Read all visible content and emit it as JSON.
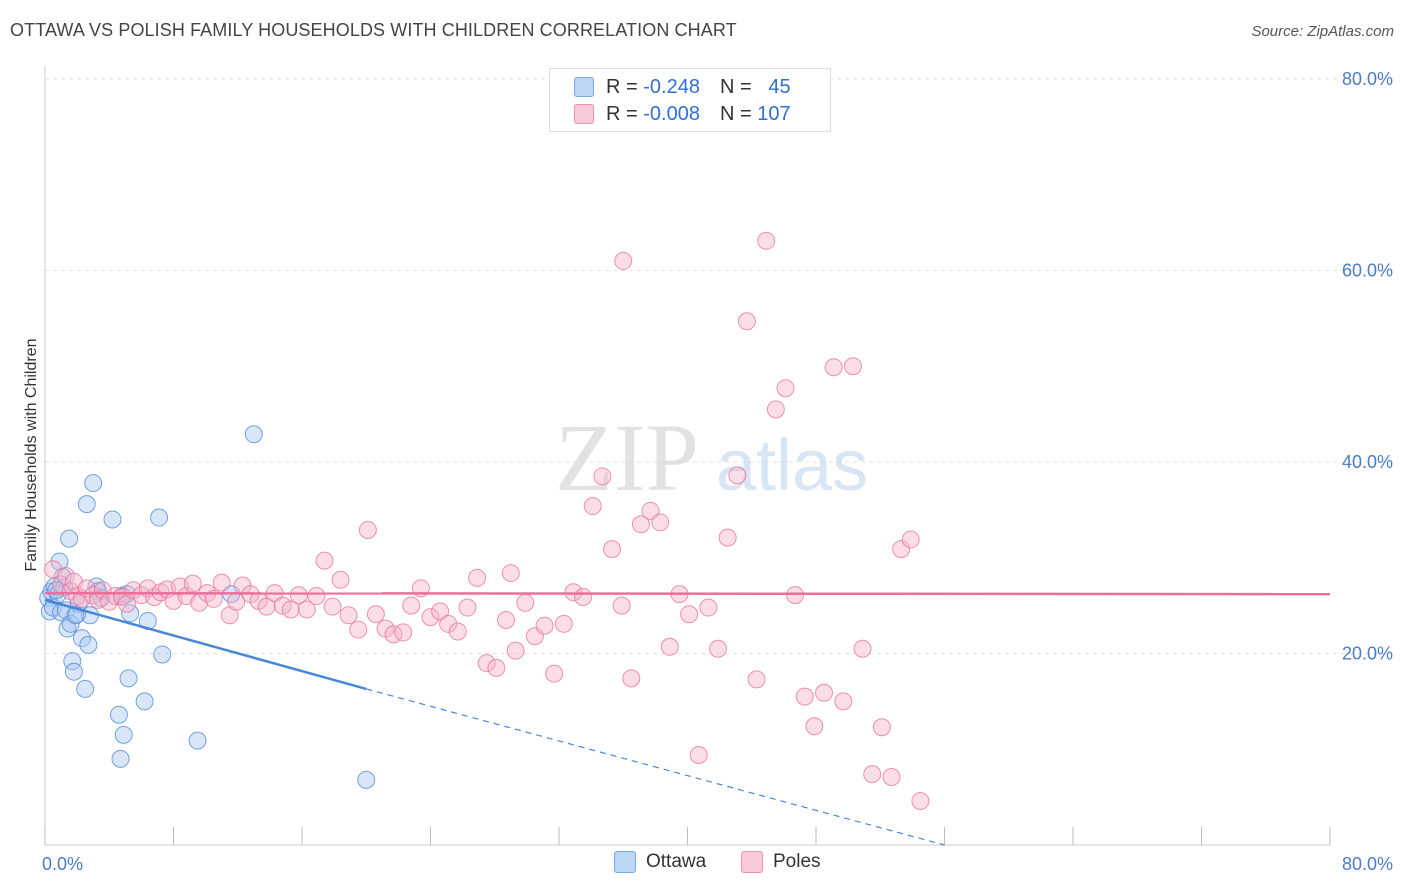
{
  "header": {
    "title": "OTTAWA VS POLISH FAMILY HOUSEHOLDS WITH CHILDREN CORRELATION CHART",
    "source": "Source: ZipAtlas.com"
  },
  "legend": {
    "rows": [
      {
        "r_label": "R =",
        "r_value": "-0.248",
        "n_label": "N =",
        "n_value": "45",
        "color": "#a9c8f0"
      },
      {
        "r_label": "R =",
        "r_value": "-0.008",
        "n_label": "N =",
        "n_value": "107",
        "color": "#f5b3c9"
      }
    ],
    "series": [
      "Ottawa",
      "Poles"
    ]
  },
  "watermark": {
    "zip": "ZIP",
    "atlas": "atlas"
  },
  "chart_data": {
    "type": "scatter",
    "title": "OTTAWA VS POLISH FAMILY HOUSEHOLDS WITH CHILDREN CORRELATION CHART",
    "xlabel": "",
    "ylabel": "Family Households with Children",
    "xlim": [
      0,
      80
    ],
    "ylim": [
      0,
      80
    ],
    "x_tick_labels": [
      "0.0%",
      "80.0%"
    ],
    "y_tick_labels": [
      "20.0%",
      "40.0%",
      "60.0%",
      "80.0%"
    ],
    "y_ticks": [
      20,
      40,
      60,
      80
    ],
    "grid": true,
    "legend_position": "top-center",
    "series": [
      {
        "name": "Ottawa",
        "color": "#4a86d8",
        "fill": "#a9c8f0",
        "trend": {
          "x": [
            0,
            20
          ],
          "y": [
            25.6,
            16.3
          ],
          "dashed_to": [
            56,
            0
          ]
        },
        "points": [
          [
            0.2,
            25.8
          ],
          [
            0.3,
            24.4
          ],
          [
            0.4,
            26.5
          ],
          [
            0.5,
            24.8
          ],
          [
            0.6,
            27.0
          ],
          [
            0.8,
            26.2
          ],
          [
            0.9,
            29.6
          ],
          [
            1.0,
            24.3
          ],
          [
            1.1,
            28.0
          ],
          [
            1.2,
            26.9
          ],
          [
            1.3,
            24.5
          ],
          [
            1.4,
            22.6
          ],
          [
            1.5,
            32.0
          ],
          [
            1.6,
            23.1
          ],
          [
            1.7,
            19.2
          ],
          [
            1.8,
            18.1
          ],
          [
            2.0,
            24.1
          ],
          [
            2.1,
            25.2
          ],
          [
            2.3,
            21.6
          ],
          [
            2.5,
            16.3
          ],
          [
            2.6,
            35.6
          ],
          [
            2.7,
            20.9
          ],
          [
            2.8,
            24.0
          ],
          [
            3.0,
            37.8
          ],
          [
            3.2,
            27.0
          ],
          [
            3.3,
            26.5
          ],
          [
            3.5,
            25.8
          ],
          [
            4.2,
            34.0
          ],
          [
            4.6,
            13.6
          ],
          [
            4.8,
            26.0
          ],
          [
            4.9,
            11.5
          ],
          [
            5.1,
            26.2
          ],
          [
            5.2,
            17.4
          ],
          [
            5.3,
            24.2
          ],
          [
            6.2,
            15.0
          ],
          [
            6.4,
            23.4
          ],
          [
            7.1,
            34.2
          ],
          [
            7.3,
            19.9
          ],
          [
            9.5,
            10.9
          ],
          [
            11.6,
            26.2
          ],
          [
            13.0,
            42.9
          ],
          [
            20.0,
            6.8
          ],
          [
            4.7,
            9.0
          ],
          [
            0.7,
            26.6
          ],
          [
            1.9,
            24.0
          ]
        ]
      },
      {
        "name": "Poles",
        "color": "#e8709a",
        "fill": "#f5b3c9",
        "trend": {
          "x": [
            0,
            80
          ],
          "y": [
            26.3,
            26.2
          ]
        },
        "points": [
          [
            0.5,
            28.8
          ],
          [
            1.0,
            27.2
          ],
          [
            1.3,
            28.1
          ],
          [
            1.6,
            26.5
          ],
          [
            1.8,
            27.5
          ],
          [
            2.0,
            26.0
          ],
          [
            2.3,
            25.7
          ],
          [
            2.6,
            26.8
          ],
          [
            3.0,
            26.1
          ],
          [
            3.3,
            25.6
          ],
          [
            3.6,
            26.6
          ],
          [
            4.0,
            25.4
          ],
          [
            4.4,
            26.0
          ],
          [
            4.8,
            25.9
          ],
          [
            5.1,
            25.2
          ],
          [
            5.5,
            26.6
          ],
          [
            6.0,
            26.1
          ],
          [
            6.4,
            26.8
          ],
          [
            6.8,
            25.9
          ],
          [
            7.2,
            26.4
          ],
          [
            7.6,
            26.7
          ],
          [
            8.0,
            25.5
          ],
          [
            8.4,
            27.0
          ],
          [
            8.8,
            26.0
          ],
          [
            9.2,
            27.3
          ],
          [
            9.6,
            25.3
          ],
          [
            10.1,
            26.3
          ],
          [
            10.5,
            25.7
          ],
          [
            11.0,
            27.4
          ],
          [
            11.5,
            24.0
          ],
          [
            11.9,
            25.4
          ],
          [
            12.3,
            27.1
          ],
          [
            12.8,
            26.2
          ],
          [
            13.3,
            25.5
          ],
          [
            13.8,
            24.9
          ],
          [
            14.3,
            26.3
          ],
          [
            14.8,
            25.0
          ],
          [
            15.3,
            24.6
          ],
          [
            15.8,
            26.1
          ],
          [
            16.3,
            24.6
          ],
          [
            16.9,
            26.0
          ],
          [
            17.4,
            29.7
          ],
          [
            17.9,
            24.9
          ],
          [
            18.4,
            27.7
          ],
          [
            18.9,
            24.0
          ],
          [
            19.5,
            22.5
          ],
          [
            20.1,
            32.9
          ],
          [
            20.6,
            24.1
          ],
          [
            21.2,
            22.6
          ],
          [
            21.7,
            22.0
          ],
          [
            22.3,
            22.2
          ],
          [
            22.8,
            25.0
          ],
          [
            23.4,
            26.8
          ],
          [
            24.0,
            23.8
          ],
          [
            24.6,
            24.4
          ],
          [
            25.1,
            23.1
          ],
          [
            25.7,
            22.3
          ],
          [
            26.3,
            24.8
          ],
          [
            26.9,
            27.9
          ],
          [
            27.5,
            19.0
          ],
          [
            28.1,
            18.5
          ],
          [
            28.7,
            23.5
          ],
          [
            29.3,
            20.3
          ],
          [
            29.9,
            25.3
          ],
          [
            30.5,
            21.8
          ],
          [
            31.1,
            22.9
          ],
          [
            31.7,
            17.9
          ],
          [
            32.3,
            23.1
          ],
          [
            32.9,
            26.4
          ],
          [
            33.5,
            25.9
          ],
          [
            34.1,
            35.4
          ],
          [
            34.7,
            38.5
          ],
          [
            35.3,
            30.9
          ],
          [
            35.9,
            25.0
          ],
          [
            36.5,
            17.4
          ],
          [
            37.1,
            33.5
          ],
          [
            37.7,
            34.9
          ],
          [
            38.3,
            33.7
          ],
          [
            38.9,
            20.7
          ],
          [
            39.5,
            26.2
          ],
          [
            40.1,
            24.1
          ],
          [
            40.7,
            9.4
          ],
          [
            41.3,
            24.8
          ],
          [
            41.9,
            20.5
          ],
          [
            42.5,
            32.1
          ],
          [
            43.1,
            38.6
          ],
          [
            43.7,
            54.7
          ],
          [
            44.3,
            17.3
          ],
          [
            44.9,
            63.1
          ],
          [
            45.5,
            45.5
          ],
          [
            46.1,
            47.7
          ],
          [
            46.7,
            26.1
          ],
          [
            47.3,
            15.5
          ],
          [
            47.9,
            12.4
          ],
          [
            48.5,
            15.9
          ],
          [
            49.1,
            49.9
          ],
          [
            49.7,
            15.0
          ],
          [
            50.3,
            50.0
          ],
          [
            50.9,
            20.5
          ],
          [
            51.5,
            7.4
          ],
          [
            52.1,
            12.3
          ],
          [
            52.7,
            7.1
          ],
          [
            53.3,
            30.9
          ],
          [
            53.9,
            31.9
          ],
          [
            54.5,
            4.6
          ],
          [
            36.0,
            61.0
          ],
          [
            29.0,
            28.4
          ]
        ]
      }
    ]
  }
}
